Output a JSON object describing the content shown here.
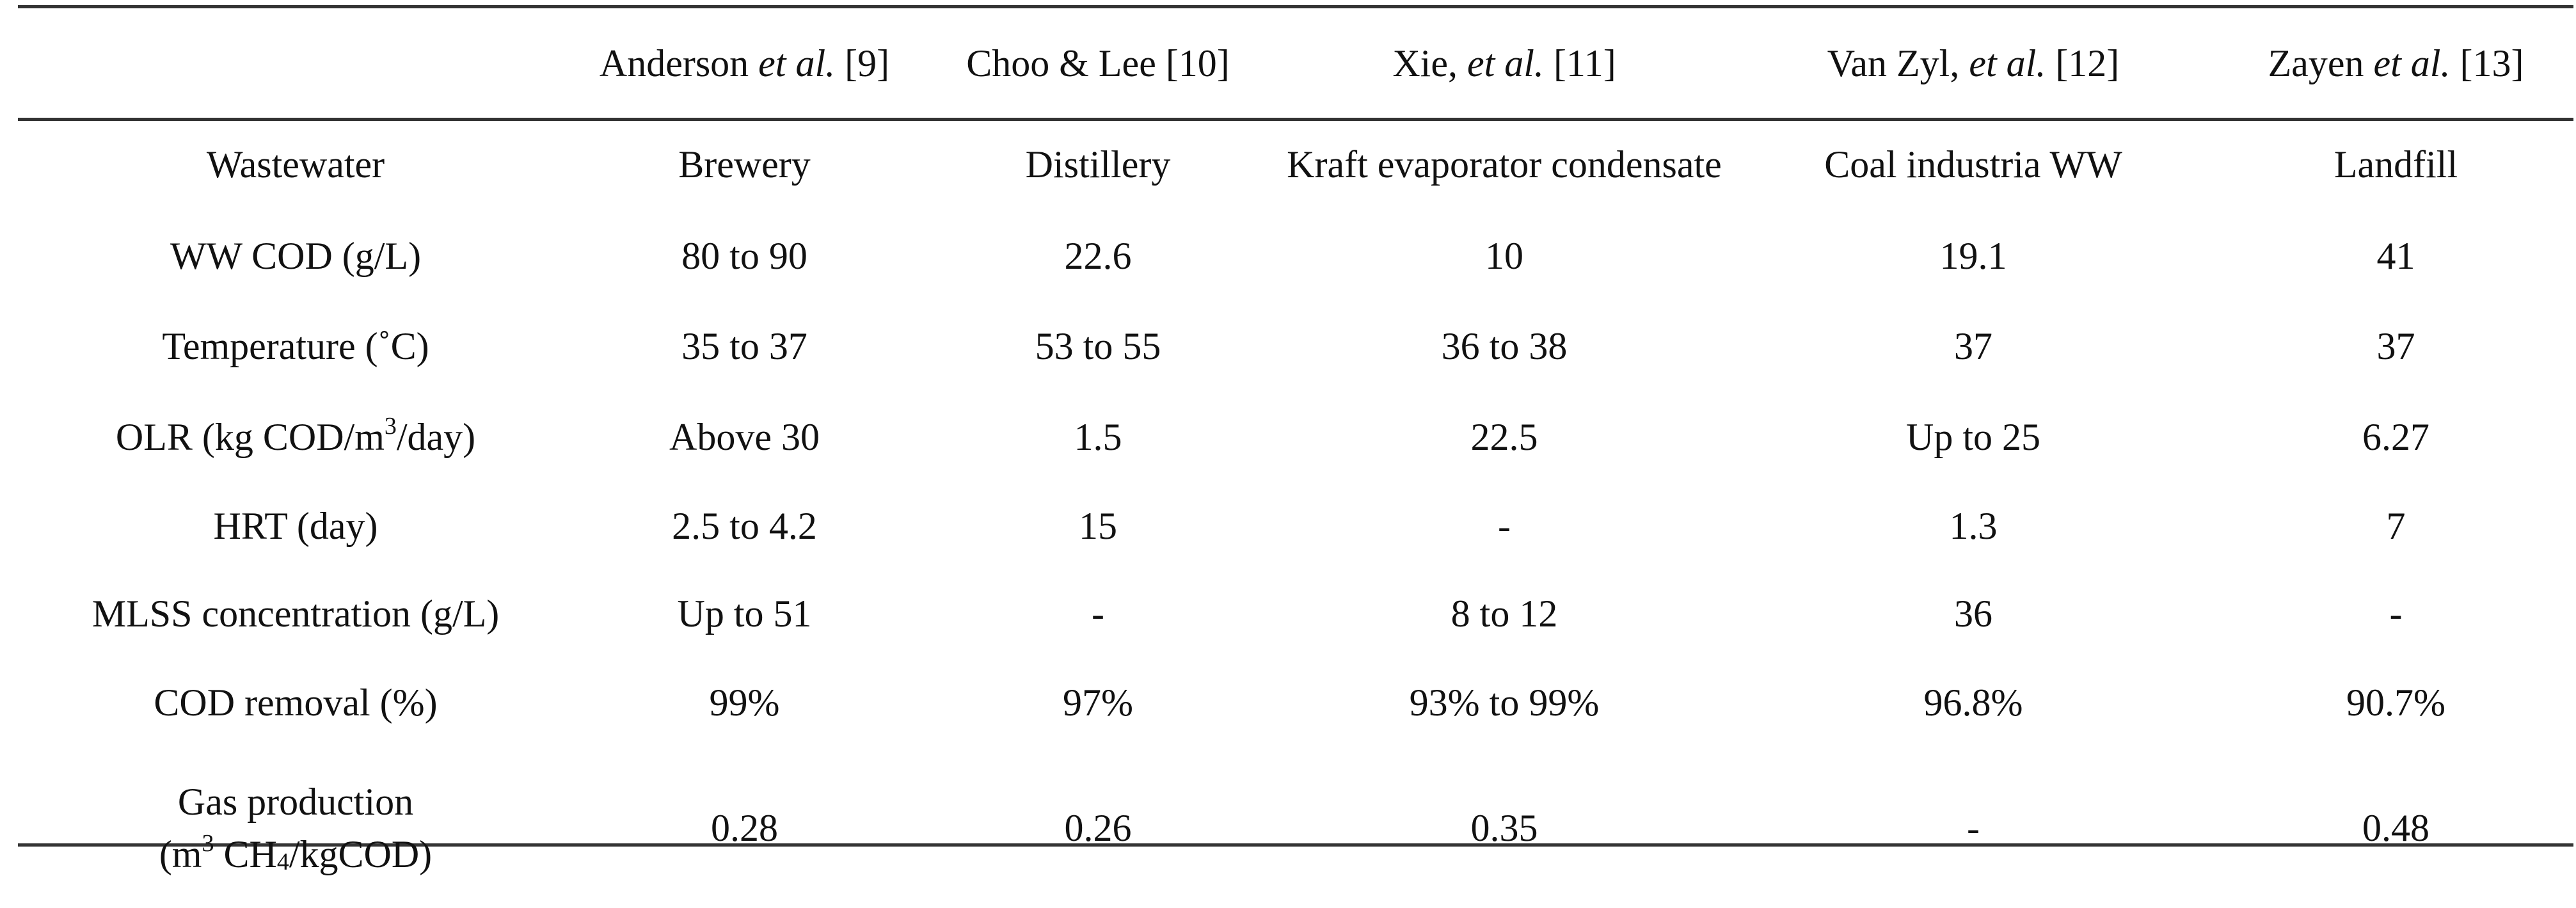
{
  "header": {
    "blank": "",
    "col1": {
      "author": "Anderson",
      "etal": "et al.",
      "ref": "[9]"
    },
    "col2": {
      "text": "Choo & Lee [10]"
    },
    "col3": {
      "author": "Xie,",
      "etal": "et al.",
      "ref": "[11]"
    },
    "col4": {
      "author": "Van Zyl,",
      "etal": "et al.",
      "ref": "[12]"
    },
    "col5": {
      "author": "Zayen",
      "etal": "et al.",
      "ref": "[13]"
    }
  },
  "rows": [
    {
      "label": "Wastewater",
      "values": [
        "Brewery",
        "Distillery",
        "Kraft evaporator condensate",
        "Coal industria WW",
        "Landfill"
      ]
    },
    {
      "label": "WW COD (g/L)",
      "values": [
        "80 to 90",
        "22.6",
        "10",
        "19.1",
        "41"
      ]
    },
    {
      "label": "Temperature (˚C)",
      "values": [
        "35 to 37",
        "53 to 55",
        "36 to 38",
        "37",
        "37"
      ]
    },
    {
      "label_parts": {
        "pre": "OLR (kg COD/m",
        "sup": "3",
        "post": "/day)"
      },
      "values": [
        "Above 30",
        "1.5",
        "22.5",
        "Up to 25",
        "6.27"
      ]
    },
    {
      "label": "HRT (day)",
      "values": [
        "2.5 to 4.2",
        "15",
        "-",
        "1.3",
        "7"
      ]
    },
    {
      "label": "MLSS concentration (g/L)",
      "values": [
        "Up to 51",
        "-",
        "8 to 12",
        "36",
        "-"
      ]
    },
    {
      "label": "COD removal (%)",
      "values": [
        "99%",
        "97%",
        "93% to 99%",
        "96.8%",
        "90.7%"
      ]
    },
    {
      "label_parts": {
        "line1": "Gas production",
        "open": "(m",
        "sup": "3",
        "mid": " CH",
        "sub": "4",
        "post": "/kgCOD)"
      },
      "values": [
        "0.28",
        "0.26",
        "0.35",
        "-",
        "0.48"
      ]
    }
  ]
}
